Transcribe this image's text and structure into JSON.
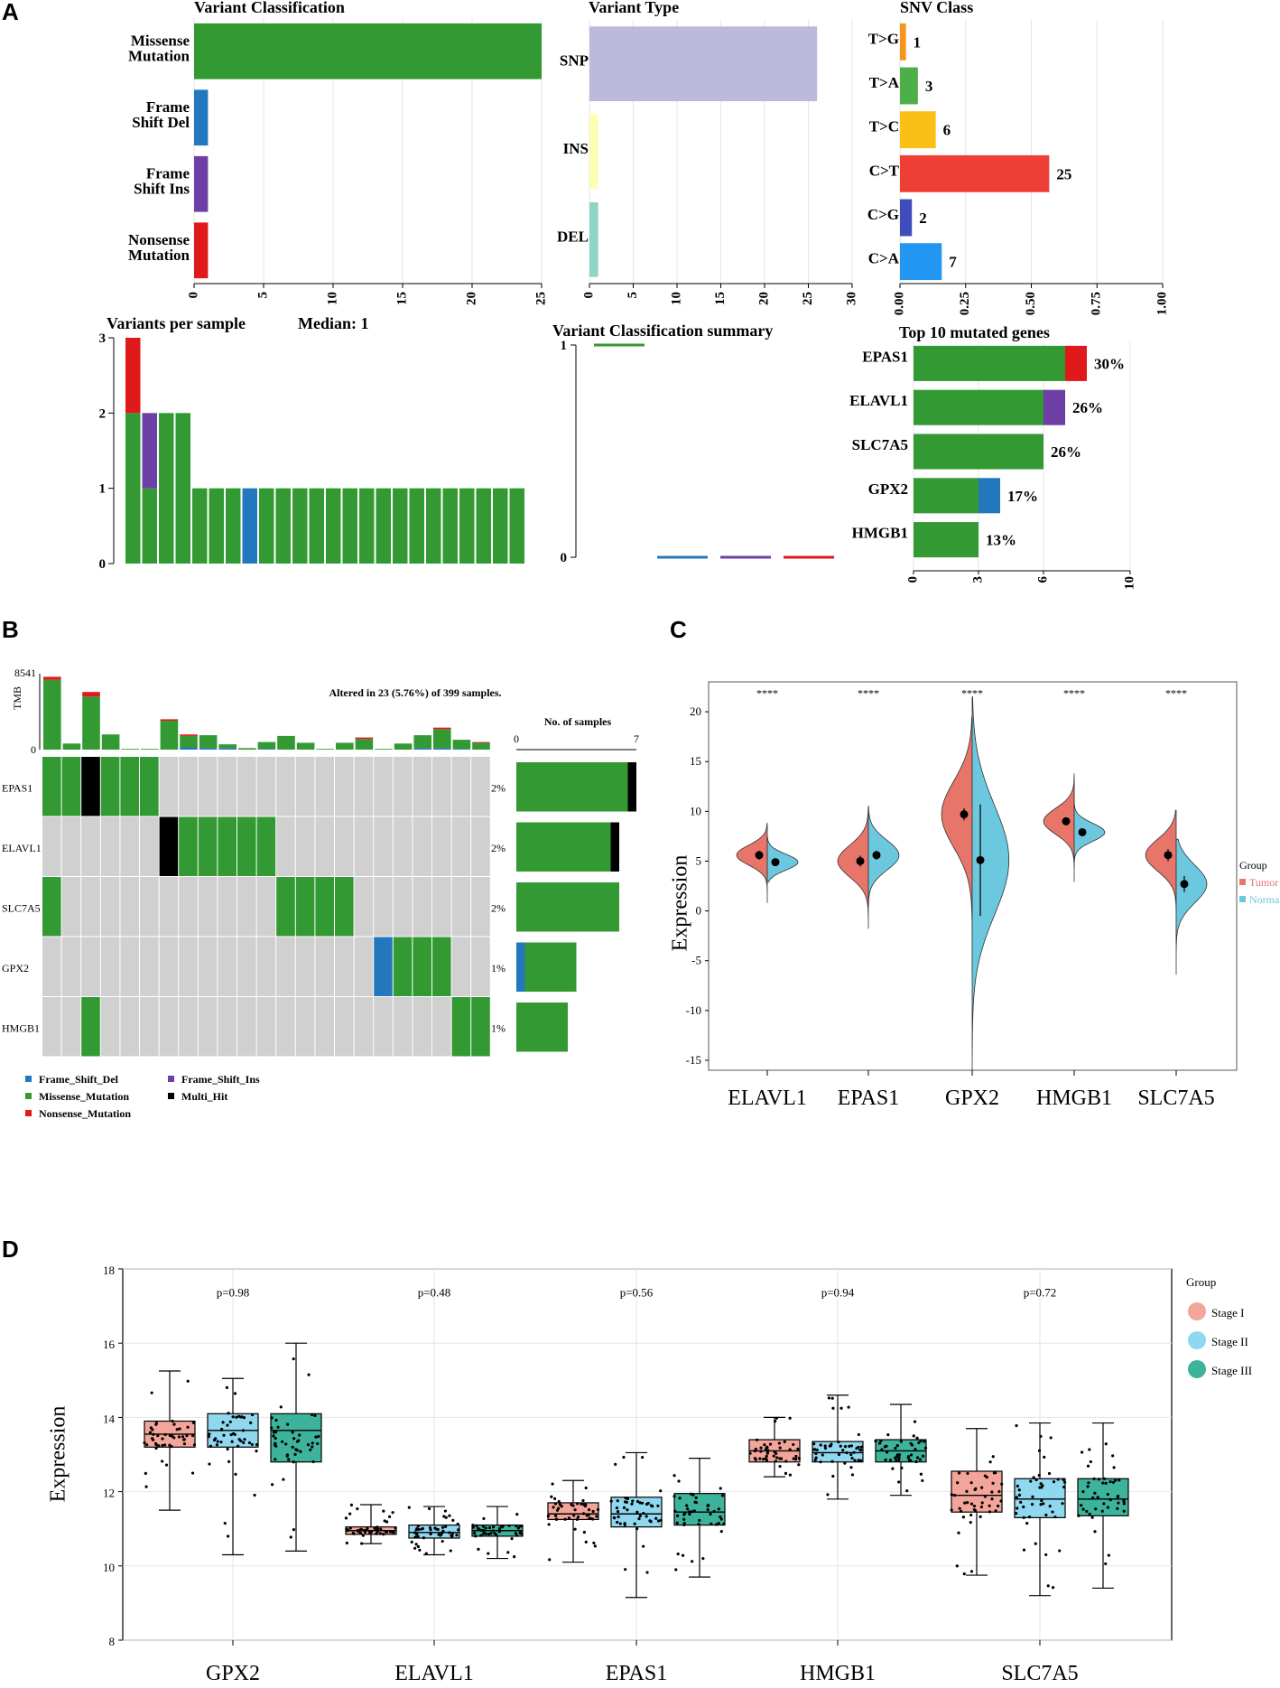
{
  "figure_labels": {
    "a": "A",
    "b": "B",
    "c": "C",
    "d": "D"
  },
  "colors": {
    "missense": "#339933",
    "frame_shift_del": "#2378bd",
    "frame_shift_ins": "#6d3fa6",
    "nonsense": "#e0191b",
    "multi_hit": "#000000",
    "snp": "#bdb9dc",
    "ins": "#fdfdb3",
    "del": "#8fd4c7",
    "tumor": "#e8756a",
    "normal": "#6cc8df",
    "stage1": "#f4a59a",
    "stage2": "#8fd8ef",
    "stage3": "#3cb39a",
    "grid": "#e6e6e6",
    "missing": "#d0d0d0"
  },
  "chart_data": [
    {
      "id": "variant_classification",
      "type": "bar",
      "orientation": "horizontal",
      "title": "Variant Classification",
      "categories": [
        "Missense\nMutation",
        "Frame\nShift Del",
        "Frame\nShift Ins",
        "Nonsense\nMutation"
      ],
      "values": [
        25,
        1,
        1,
        1
      ],
      "colors": [
        "#339933",
        "#2378bd",
        "#6d3fa6",
        "#e0191b"
      ],
      "xticks": [
        0,
        5,
        10,
        15,
        20,
        25
      ],
      "xlim": [
        0,
        25
      ]
    },
    {
      "id": "variant_type",
      "type": "bar",
      "orientation": "horizontal",
      "title": "Variant Type",
      "categories": [
        "SNP",
        "INS",
        "DEL"
      ],
      "values": [
        26,
        1,
        1
      ],
      "colors": [
        "#bdb9dc",
        "#fdfdb3",
        "#8fd4c7"
      ],
      "xticks": [
        0,
        5,
        10,
        15,
        20,
        25,
        30
      ],
      "xlim": [
        0,
        30
      ]
    },
    {
      "id": "snv_class",
      "type": "bar",
      "orientation": "horizontal",
      "title": "SNV Class",
      "categories": [
        "T>G",
        "T>A",
        "T>C",
        "C>T",
        "C>G",
        "C>A"
      ],
      "values": [
        0.02273,
        0.06818,
        0.13636,
        0.56818,
        0.04545,
        0.15909
      ],
      "labels": [
        "1",
        "3",
        "6",
        "25",
        "2",
        "7"
      ],
      "colors": [
        "#f7941e",
        "#4daf4a",
        "#fbc018",
        "#ef3e36",
        "#3f4dbd",
        "#2196f3"
      ],
      "xticks": [
        "0.00",
        "0.25",
        "0.50",
        "0.75",
        "1.00"
      ],
      "xlim": [
        0,
        1
      ]
    },
    {
      "id": "variants_per_sample",
      "type": "bar",
      "stacked": true,
      "title": "Variants per sample",
      "median_label": "Median: 1",
      "yticks": [
        0,
        1,
        2,
        3
      ],
      "ylim": [
        0,
        3
      ],
      "series": [
        {
          "name": "Missense_Mutation",
          "color": "#339933",
          "values": [
            2,
            1,
            2,
            2,
            1,
            1,
            1,
            0,
            1,
            1,
            1,
            1,
            1,
            1,
            1,
            1,
            1,
            1,
            1,
            1,
            1,
            1,
            1,
            1
          ]
        },
        {
          "name": "Frame_Shift_Ins",
          "color": "#6d3fa6",
          "values": [
            0,
            1,
            0,
            0,
            0,
            0,
            0,
            0,
            0,
            0,
            0,
            0,
            0,
            0,
            0,
            0,
            0,
            0,
            0,
            0,
            0,
            0,
            0,
            0
          ]
        },
        {
          "name": "Frame_Shift_Del",
          "color": "#2378bd",
          "values": [
            0,
            0,
            0,
            0,
            0,
            0,
            0,
            1,
            0,
            0,
            0,
            0,
            0,
            0,
            0,
            0,
            0,
            0,
            0,
            0,
            0,
            0,
            0,
            0
          ]
        },
        {
          "name": "Nonsense_Mutation",
          "color": "#e0191b",
          "values": [
            1,
            0,
            0,
            0,
            0,
            0,
            0,
            0,
            0,
            0,
            0,
            0,
            0,
            0,
            0,
            0,
            0,
            0,
            0,
            0,
            0,
            0,
            0,
            0
          ]
        }
      ]
    },
    {
      "id": "variant_classification_summary",
      "type": "boxplot",
      "title": "Variant Classification summary",
      "yticks": [
        0,
        1
      ],
      "boxes": [
        {
          "name": "Missense_Mutation",
          "color": "#339933",
          "value": 1
        },
        {
          "name": "Frame_Shift_Del",
          "color": "#2378bd",
          "value": 0
        },
        {
          "name": "Frame_Shift_Ins",
          "color": "#6d3fa6",
          "value": 0
        },
        {
          "name": "Nonsense_Mutation",
          "color": "#e0191b",
          "value": 0
        }
      ]
    },
    {
      "id": "top10_mutated_genes",
      "type": "bar",
      "orientation": "horizontal",
      "stacked": true,
      "title": "Top 10 mutated genes",
      "categories": [
        "EPAS1",
        "ELAVL1",
        "SLC7A5",
        "GPX2",
        "HMGB1"
      ],
      "labels": [
        "30%",
        "26%",
        "26%",
        "17%",
        "13%"
      ],
      "series": [
        {
          "name": "Missense_Mutation",
          "color": "#339933",
          "values": [
            7,
            6,
            6,
            3,
            3
          ]
        },
        {
          "name": "Nonsense_Mutation",
          "color": "#e0191b",
          "values": [
            1,
            0,
            0,
            0,
            0
          ]
        },
        {
          "name": "Frame_Shift_Ins",
          "color": "#6d3fa6",
          "values": [
            0,
            1,
            0,
            0,
            0
          ]
        },
        {
          "name": "Frame_Shift_Del",
          "color": "#2378bd",
          "values": [
            0,
            0,
            0,
            1,
            0
          ]
        }
      ],
      "xticks": [
        0,
        3,
        6,
        10
      ],
      "xlim": [
        0,
        10
      ]
    },
    {
      "id": "oncoplot",
      "type": "heatmap",
      "title": "Altered in 23 (5.76%) of 399 samples.",
      "tmb_label": "TMB",
      "tmb_max": "8541",
      "tmb_min": "0",
      "genes": [
        "EPAS1",
        "ELAVL1",
        "SLC7A5",
        "GPX2",
        "HMGB1"
      ],
      "percentages": [
        "2%",
        "2%",
        "2%",
        "1%",
        "1%"
      ],
      "tmb": [
        [
          [
            0.92,
            "#339933"
          ],
          [
            0.04,
            "#e0191b"
          ]
        ],
        [
          [
            0.08,
            "#339933"
          ]
        ],
        [
          [
            0.7,
            "#339933"
          ],
          [
            0.06,
            "#e0191b"
          ]
        ],
        [
          [
            0.2,
            "#339933"
          ]
        ],
        [
          [
            0.01,
            "#339933"
          ]
        ],
        [
          [
            0.01,
            "#339933"
          ]
        ],
        [
          [
            0.38,
            "#339933"
          ],
          [
            0.02,
            "#e0191b"
          ]
        ],
        [
          [
            0.03,
            "#2378bd"
          ],
          [
            0.15,
            "#339933"
          ],
          [
            0.02,
            "#e0191b"
          ]
        ],
        [
          [
            0.02,
            "#2378bd"
          ],
          [
            0.17,
            "#339933"
          ]
        ],
        [
          [
            0.02,
            "#2378bd"
          ],
          [
            0.05,
            "#339933"
          ]
        ],
        [
          [
            0.02,
            "#339933"
          ]
        ],
        [
          [
            0.01,
            "#2378bd"
          ],
          [
            0.09,
            "#339933"
          ]
        ],
        [
          [
            0.18,
            "#339933"
          ]
        ],
        [
          [
            0.09,
            "#339933"
          ]
        ],
        [
          [
            0.01,
            "#339933"
          ]
        ],
        [
          [
            0.09,
            "#339933"
          ]
        ],
        [
          [
            0.14,
            "#339933"
          ],
          [
            0.02,
            "#e0191b"
          ]
        ],
        [
          [
            0.01,
            "#339933"
          ]
        ],
        [
          [
            0.08,
            "#339933"
          ]
        ],
        [
          [
            0.02,
            "#2378bd"
          ],
          [
            0.17,
            "#339933"
          ]
        ],
        [
          [
            0.02,
            "#2378bd"
          ],
          [
            0.25,
            "#339933"
          ],
          [
            0.02,
            "#e0191b"
          ]
        ],
        [
          [
            0.01,
            "#2378bd"
          ],
          [
            0.12,
            "#339933"
          ]
        ],
        [
          [
            0.09,
            "#339933"
          ],
          [
            0.01,
            "#e0191b"
          ]
        ]
      ],
      "matrix": [
        [
          "M",
          "M",
          "X",
          "M",
          "M",
          "M",
          "-",
          "-",
          "-",
          "-",
          "-",
          "-",
          "-",
          "-",
          "-",
          "-",
          "-",
          "-",
          "-",
          "-",
          "-",
          "-",
          "-"
        ],
        [
          "-",
          "-",
          "-",
          "-",
          "-",
          "-",
          "X",
          "M",
          "M",
          "M",
          "M",
          "M",
          "-",
          "-",
          "-",
          "-",
          "-",
          "-",
          "-",
          "-",
          "-",
          "-",
          "-"
        ],
        [
          "M",
          "-",
          "-",
          "-",
          "-",
          "-",
          "-",
          "-",
          "-",
          "-",
          "-",
          "-",
          "M",
          "M",
          "M",
          "M",
          "-",
          "-",
          "-",
          "-",
          "-",
          "-",
          "-"
        ],
        [
          "-",
          "-",
          "-",
          "-",
          "-",
          "-",
          "-",
          "-",
          "-",
          "-",
          "-",
          "-",
          "-",
          "-",
          "-",
          "-",
          "-",
          "D",
          "M",
          "M",
          "M",
          "-",
          "-"
        ],
        [
          "-",
          "-",
          "M",
          "-",
          "-",
          "-",
          "-",
          "-",
          "-",
          "-",
          "-",
          "-",
          "-",
          "-",
          "-",
          "-",
          "-",
          "-",
          "-",
          "-",
          "-",
          "M",
          "M"
        ]
      ],
      "side_bars": {
        "title": "No. of samples",
        "ticks": [
          "0",
          "7"
        ],
        "max": 7,
        "values": [
          [
            [
              6.5,
              "#339933"
            ],
            [
              0.5,
              "#000000"
            ]
          ],
          [
            [
              5.5,
              "#339933"
            ],
            [
              0.5,
              "#000000"
            ]
          ],
          [
            [
              6.0,
              "#339933"
            ]
          ],
          [
            [
              0.5,
              "#2378bd"
            ],
            [
              3.0,
              "#339933"
            ]
          ],
          [
            [
              3.0,
              "#339933"
            ]
          ]
        ]
      },
      "legend": [
        {
          "label": "Frame_Shift_Del",
          "color": "#2378bd"
        },
        {
          "label": "Frame_Shift_Ins",
          "color": "#6d3fa6"
        },
        {
          "label": "Missense_Mutation",
          "color": "#339933"
        },
        {
          "label": "Multi_Hit",
          "color": "#000000"
        },
        {
          "label": "Nonsense_Mutation",
          "color": "#e0191b"
        }
      ]
    },
    {
      "id": "split_violin",
      "type": "violin",
      "ylabel": "Expression",
      "ylim": [
        -16,
        23
      ],
      "yticks": [
        20,
        15,
        10,
        5,
        0,
        -5,
        -10,
        -15
      ],
      "categories": [
        "ELAVL1",
        "EPAS1",
        "GPX2",
        "HMGB1",
        "SLC7A5"
      ],
      "significance": [
        "****",
        "****",
        "****",
        "****",
        "****"
      ],
      "legend_title": "Group",
      "groups": [
        {
          "name": "Tumor",
          "color": "#e8756a"
        },
        {
          "name": "Normal",
          "color": "#6cc8df"
        }
      ],
      "tumor": [
        {
          "min": 0.8,
          "max": 8.8,
          "mean": 5.6,
          "err": 0.45,
          "sd": 1.0
        },
        {
          "min": -1.8,
          "max": 10.5,
          "mean": 5.0,
          "err": 0.55,
          "sd": 1.6
        },
        {
          "min": -6.4,
          "max": 19.5,
          "mean": 9.7,
          "err": 0.6,
          "sd": 3.3
        },
        {
          "min": 2.9,
          "max": 13.8,
          "mean": 9.0,
          "err": 0.35,
          "sd": 1.3
        },
        {
          "min": -3.2,
          "max": 10.1,
          "mean": 5.6,
          "err": 0.6,
          "sd": 1.6
        }
      ],
      "normal": [
        {
          "min": 2.9,
          "max": 7.4,
          "mean": 4.9,
          "err": 0.2,
          "sd": 0.8
        },
        {
          "min": 0.5,
          "max": 10.5,
          "mean": 5.6,
          "err": 0.45,
          "sd": 1.5
        },
        {
          "min": -16.0,
          "max": 21.5,
          "mean": 5.1,
          "err": 5.6,
          "sd": 5.5
        },
        {
          "min": 4.3,
          "max": 13.4,
          "mean": 7.9,
          "err": 0.3,
          "sd": 0.9
        },
        {
          "min": -6.4,
          "max": 7.2,
          "mean": 2.7,
          "err": 0.8,
          "sd": 1.9
        }
      ]
    },
    {
      "id": "stage_boxplot",
      "type": "boxplot",
      "ylabel": "Expression",
      "ylim": [
        8,
        18
      ],
      "yticks": [
        8,
        10,
        12,
        14,
        16,
        18
      ],
      "categories": [
        "GPX2",
        "ELAVL1",
        "EPAS1",
        "HMGB1",
        "SLC7A5"
      ],
      "pvalues": [
        "p=0.98",
        "p=0.48",
        "p=0.56",
        "p=0.94",
        "p=0.72"
      ],
      "legend_title": "Group",
      "groups": [
        {
          "name": "Stage I",
          "color": "#f4a59a"
        },
        {
          "name": "Stage II",
          "color": "#8fd8ef"
        },
        {
          "name": "Stage III",
          "color": "#3cb39a"
        }
      ],
      "boxes": [
        [
          [
            11.5,
            13.2,
            13.55,
            13.9,
            15.25
          ],
          [
            10.3,
            13.2,
            13.65,
            14.1,
            15.05
          ],
          [
            10.4,
            12.8,
            13.65,
            14.1,
            16.0
          ]
        ],
        [
          [
            10.6,
            10.85,
            10.95,
            11.05,
            11.65
          ],
          [
            10.3,
            10.75,
            10.9,
            11.1,
            11.6
          ],
          [
            10.2,
            10.8,
            10.95,
            11.1,
            11.6
          ]
        ],
        [
          [
            10.1,
            11.25,
            11.4,
            11.7,
            12.3
          ],
          [
            9.15,
            11.05,
            11.4,
            11.85,
            13.05
          ],
          [
            9.7,
            11.1,
            11.45,
            11.95,
            12.9
          ]
        ],
        [
          [
            12.4,
            12.8,
            13.1,
            13.4,
            14.0
          ],
          [
            11.8,
            12.8,
            13.05,
            13.35,
            14.6
          ],
          [
            11.9,
            12.8,
            13.1,
            13.4,
            14.35
          ]
        ],
        [
          [
            9.75,
            11.45,
            11.9,
            12.55,
            13.7
          ],
          [
            9.2,
            11.3,
            11.8,
            12.35,
            13.85
          ],
          [
            9.4,
            11.35,
            11.8,
            12.35,
            13.85
          ]
        ]
      ]
    }
  ]
}
